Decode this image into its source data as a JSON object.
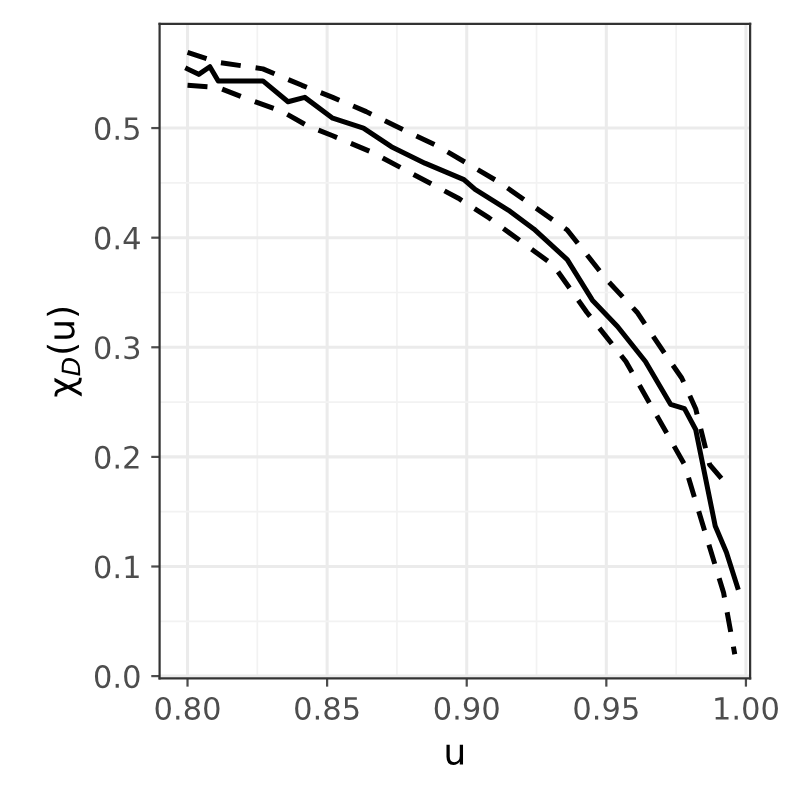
{
  "chart_data": {
    "type": "line",
    "xlabel": "u",
    "ylabel": "χ$_{D}$(u)",
    "xlim": [
      0.79,
      1.0015
    ],
    "ylim": [
      -0.002,
      0.595
    ],
    "xticks": [
      {
        "value": 0.8,
        "label": "0.80"
      },
      {
        "value": 0.85,
        "label": "0.85"
      },
      {
        "value": 0.9,
        "label": "0.90"
      },
      {
        "value": 0.95,
        "label": "0.95"
      },
      {
        "value": 1.0,
        "label": "1.00"
      }
    ],
    "yticks": [
      {
        "value": 0,
        "label": "0.0"
      },
      0.1,
      0.2,
      0.3,
      0.4,
      0.5
    ],
    "grid": true,
    "marker": "none",
    "series": [
      {
        "color": "#000000",
        "line_style": "solid",
        "x": [
          0.8,
          0.804,
          0.808,
          0.811,
          0.82,
          0.827,
          0.836,
          0.842,
          0.852,
          0.863,
          0.873,
          0.885,
          0.899,
          0.903,
          0.915,
          0.924,
          0.936,
          0.945,
          0.954,
          0.964,
          0.973,
          0.978,
          0.982,
          0.989,
          0.993,
          0.997
        ],
        "values": [
          0.554,
          0.549,
          0.556,
          0.543,
          0.543,
          0.543,
          0.524,
          0.528,
          0.509,
          0.5,
          0.483,
          0.468,
          0.453,
          0.444,
          0.425,
          0.408,
          0.38,
          0.343,
          0.319,
          0.287,
          0.248,
          0.244,
          0.225,
          0.137,
          0.113,
          0.081
        ]
      },
      {
        "color": "#000000",
        "line_style": "dashed",
        "x": [
          0.8,
          0.811,
          0.827,
          0.841,
          0.852,
          0.864,
          0.876,
          0.89,
          0.912,
          0.936,
          0.95,
          0.961,
          0.971,
          0.977,
          0.982,
          0.987,
          0.993
        ],
        "values": [
          0.569,
          0.56,
          0.554,
          0.539,
          0.528,
          0.515,
          0.5,
          0.483,
          0.45,
          0.407,
          0.362,
          0.332,
          0.294,
          0.272,
          0.244,
          0.193,
          0.175
        ]
      },
      {
        "color": "#000000",
        "line_style": "dashed",
        "x": [
          0.8,
          0.811,
          0.82,
          0.834,
          0.843,
          0.852,
          0.866,
          0.88,
          0.897,
          0.908,
          0.931,
          0.943,
          0.957,
          0.968,
          0.978,
          0.986,
          0.992,
          0.996
        ],
        "values": [
          0.539,
          0.537,
          0.528,
          0.515,
          0.502,
          0.493,
          0.478,
          0.459,
          0.436,
          0.418,
          0.375,
          0.332,
          0.287,
          0.238,
          0.193,
          0.126,
          0.076,
          0.02
        ]
      }
    ]
  }
}
